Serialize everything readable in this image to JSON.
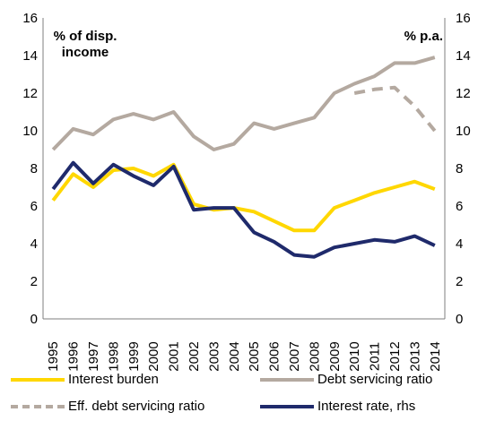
{
  "chart_data": {
    "type": "line",
    "left_axis_label": "% of disp. income",
    "right_axis_label": "% p.a.",
    "ylim": [
      0,
      16
    ],
    "yticks": [
      0,
      2,
      4,
      6,
      8,
      10,
      12,
      14,
      16
    ],
    "x": [
      "1995",
      "1996",
      "1997",
      "1998",
      "1999",
      "2000",
      "2001",
      "2002",
      "2003",
      "2004",
      "2005",
      "2006",
      "2007",
      "2008",
      "2009",
      "2010",
      "2011",
      "2012",
      "2013",
      "2014"
    ],
    "series": [
      {
        "name": "Interest burden",
        "axis": "left",
        "color": "#FFD700",
        "dash": "solid",
        "values": [
          6.3,
          7.7,
          7.0,
          7.9,
          8.0,
          7.6,
          8.2,
          6.1,
          5.8,
          5.9,
          5.7,
          5.2,
          4.7,
          4.7,
          5.9,
          6.3,
          6.7,
          7.0,
          7.3,
          6.9
        ]
      },
      {
        "name": "Debt servicing ratio",
        "axis": "left",
        "color": "#B4A9A0",
        "dash": "solid",
        "values": [
          9.0,
          10.1,
          9.8,
          10.6,
          10.9,
          10.6,
          11.0,
          9.7,
          9.0,
          9.3,
          10.4,
          10.1,
          10.4,
          10.7,
          12.0,
          12.5,
          12.9,
          13.6,
          13.6,
          13.9
        ]
      },
      {
        "name": "Eff. debt servicing ratio",
        "axis": "left",
        "color": "#B4A9A0",
        "dash": "dashed",
        "values": [
          null,
          null,
          null,
          null,
          null,
          null,
          null,
          null,
          null,
          null,
          null,
          null,
          null,
          null,
          null,
          12.0,
          12.2,
          12.3,
          11.3,
          10.0
        ]
      },
      {
        "name": "Interest rate, rhs",
        "axis": "right",
        "color": "#1F2A6B",
        "dash": "solid",
        "values": [
          6.9,
          8.3,
          7.2,
          8.2,
          7.6,
          7.1,
          8.1,
          5.8,
          5.9,
          5.9,
          4.6,
          4.1,
          3.4,
          3.3,
          3.8,
          4.0,
          4.2,
          4.1,
          4.4,
          3.9
        ]
      }
    ],
    "legend_position": "bottom",
    "grid": false
  }
}
